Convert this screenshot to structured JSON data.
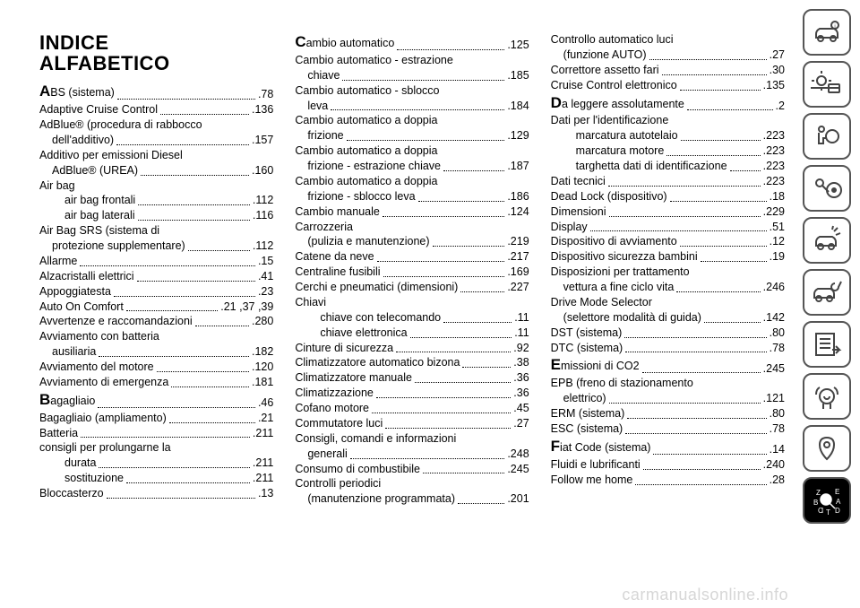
{
  "title_line1": "INDICE",
  "title_line2": "ALFABETICO",
  "watermark": "carmanualsonline.info",
  "columns": [
    [
      {
        "t": "entry",
        "big": "A",
        "label": "BS (sistema)",
        "page": ".78"
      },
      {
        "t": "entry",
        "label": "Adaptive Cruise Control",
        "page": ".136"
      },
      {
        "t": "labelonly",
        "label": "AdBlue® (procedura di rabbocco"
      },
      {
        "t": "entry",
        "indent": 1,
        "label": "dell'additivo)",
        "page": ".157"
      },
      {
        "t": "labelonly",
        "label": "Additivo per emissioni Diesel"
      },
      {
        "t": "entry",
        "indent": 1,
        "label": "AdBlue® (UREA)",
        "page": ".160"
      },
      {
        "t": "labelonly",
        "label": "Air bag"
      },
      {
        "t": "entry",
        "indent": 2,
        "label": "air bag frontali",
        "page": ".112"
      },
      {
        "t": "entry",
        "indent": 2,
        "label": "air bag laterali",
        "page": ".116"
      },
      {
        "t": "labelonly",
        "label": "Air Bag SRS (sistema di"
      },
      {
        "t": "entry",
        "indent": 1,
        "label": "protezione supplementare)",
        "page": ".112"
      },
      {
        "t": "entry",
        "label": "Allarme",
        "page": ".15"
      },
      {
        "t": "entry",
        "label": "Alzacristalli elettrici",
        "page": ".41"
      },
      {
        "t": "entry",
        "label": "Appoggiatesta",
        "page": ".23"
      },
      {
        "t": "entry",
        "label": "Auto On Comfort",
        "page": ".21 ,37 ,39"
      },
      {
        "t": "entry",
        "label": "Avvertenze e raccomandazioni",
        "page": ".280"
      },
      {
        "t": "labelonly",
        "label": "Avviamento con batteria"
      },
      {
        "t": "entry",
        "indent": 1,
        "label": "ausiliaria",
        "page": ".182"
      },
      {
        "t": "entry",
        "label": "Avviamento del motore",
        "page": ".120"
      },
      {
        "t": "entry",
        "label": "Avviamento di emergenza",
        "page": ".181"
      },
      {
        "t": "entry",
        "big": "B",
        "label": "agagliaio",
        "page": ".46"
      },
      {
        "t": "entry",
        "label": "Bagagliaio (ampliamento)",
        "page": ".21"
      },
      {
        "t": "entry",
        "label": "Batteria",
        "page": ".211"
      },
      {
        "t": "labelonly",
        "indent": 2,
        "label": "consigli per prolungarne la"
      },
      {
        "t": "entry",
        "indent": 2,
        "label": "durata",
        "page": ".211"
      },
      {
        "t": "entry",
        "indent": 2,
        "label": "sostituzione",
        "page": ".211"
      },
      {
        "t": "entry",
        "label": "Bloccasterzo",
        "page": ".13"
      }
    ],
    [
      {
        "t": "entry",
        "big": "C",
        "label": "ambio automatico",
        "page": ".125"
      },
      {
        "t": "labelonly",
        "label": "Cambio automatico - estrazione"
      },
      {
        "t": "entry",
        "indent": 1,
        "label": "chiave",
        "page": ".185"
      },
      {
        "t": "labelonly",
        "label": "Cambio automatico - sblocco"
      },
      {
        "t": "entry",
        "indent": 1,
        "label": "leva",
        "page": ".184"
      },
      {
        "t": "labelonly",
        "label": "Cambio automatico a doppia"
      },
      {
        "t": "entry",
        "indent": 1,
        "label": "frizione",
        "page": ".129"
      },
      {
        "t": "labelonly",
        "label": "Cambio automatico a doppia"
      },
      {
        "t": "entry",
        "indent": 1,
        "label": "frizione - estrazione chiave",
        "page": ".187"
      },
      {
        "t": "labelonly",
        "label": "Cambio automatico a doppia"
      },
      {
        "t": "entry",
        "indent": 1,
        "label": "frizione - sblocco leva",
        "page": ".186"
      },
      {
        "t": "entry",
        "label": "Cambio manuale",
        "page": ".124"
      },
      {
        "t": "labelonly",
        "label": "Carrozzeria"
      },
      {
        "t": "entry",
        "indent": 1,
        "label": "(pulizia e manutenzione)",
        "page": ".219"
      },
      {
        "t": "entry",
        "label": "Catene da neve",
        "page": ".217"
      },
      {
        "t": "entry",
        "label": "Centraline fusibili",
        "page": ".169"
      },
      {
        "t": "entry",
        "label": "Cerchi e pneumatici (dimensioni)",
        "page": ".227"
      },
      {
        "t": "labelonly",
        "label": "Chiavi"
      },
      {
        "t": "entry",
        "indent": 2,
        "label": "chiave con telecomando",
        "page": ".11"
      },
      {
        "t": "entry",
        "indent": 2,
        "label": "chiave elettronica",
        "page": ".11"
      },
      {
        "t": "entry",
        "label": "Cinture di sicurezza",
        "page": ".92"
      },
      {
        "t": "entry",
        "label": "Climatizzatore automatico bizona",
        "page": ".38"
      },
      {
        "t": "entry",
        "label": "Climatizzatore manuale",
        "page": ".36"
      },
      {
        "t": "entry",
        "label": "Climatizzazione",
        "page": ".36"
      },
      {
        "t": "entry",
        "label": "Cofano motore",
        "page": ".45"
      },
      {
        "t": "entry",
        "label": "Commutatore luci",
        "page": ".27"
      },
      {
        "t": "labelonly",
        "label": "Consigli, comandi e informazioni"
      },
      {
        "t": "entry",
        "indent": 1,
        "label": "generali",
        "page": ".248"
      },
      {
        "t": "entry",
        "label": "Consumo di combustibile",
        "page": ".245"
      },
      {
        "t": "labelonly",
        "label": "Controlli periodici"
      },
      {
        "t": "entry",
        "indent": 1,
        "label": "(manutenzione programmata)",
        "page": ".201"
      }
    ],
    [
      {
        "t": "labelonly",
        "label": "Controllo automatico luci"
      },
      {
        "t": "entry",
        "indent": 1,
        "label": "(funzione AUTO)",
        "page": ".27"
      },
      {
        "t": "entry",
        "label": "Correttore assetto fari",
        "page": ".30"
      },
      {
        "t": "entry",
        "label": "Cruise Control elettronico",
        "page": ".135"
      },
      {
        "t": "entry",
        "big": "D",
        "label": "a leggere assolutamente",
        "page": ".2"
      },
      {
        "t": "labelonly",
        "label": "Dati per l'identificazione"
      },
      {
        "t": "entry",
        "indent": 2,
        "label": "marcatura autotelaio",
        "page": ".223"
      },
      {
        "t": "entry",
        "indent": 2,
        "label": "marcatura motore",
        "page": ".223"
      },
      {
        "t": "entry",
        "indent": 2,
        "label": "targhetta dati di identificazione",
        "page": ".223"
      },
      {
        "t": "entry",
        "label": "Dati tecnici",
        "page": ".223"
      },
      {
        "t": "entry",
        "label": "Dead Lock (dispositivo)",
        "page": ".18"
      },
      {
        "t": "entry",
        "label": "Dimensioni",
        "page": ".229"
      },
      {
        "t": "entry",
        "label": "Display",
        "page": ".51"
      },
      {
        "t": "entry",
        "label": "Dispositivo di avviamento",
        "page": ".12"
      },
      {
        "t": "entry",
        "label": "Dispositivo sicurezza bambini",
        "page": ".19"
      },
      {
        "t": "labelonly",
        "label": "Disposizioni per trattamento"
      },
      {
        "t": "entry",
        "indent": 1,
        "label": "vettura a fine ciclo vita",
        "page": ".246"
      },
      {
        "t": "labelonly",
        "label": "Drive Mode Selector"
      },
      {
        "t": "entry",
        "indent": 1,
        "label": "(selettore modalità di guida)",
        "page": ".142"
      },
      {
        "t": "entry",
        "label": "DST (sistema)",
        "page": ".80"
      },
      {
        "t": "entry",
        "label": "DTC (sistema)",
        "page": ".78"
      },
      {
        "t": "entry",
        "big": "E",
        "label": "missioni di CO2",
        "page": ".245"
      },
      {
        "t": "labelonly",
        "label": "EPB (freno di stazionamento"
      },
      {
        "t": "entry",
        "indent": 1,
        "label": "elettrico)",
        "page": ".121"
      },
      {
        "t": "entry",
        "label": "ERM (sistema)",
        "page": ".80"
      },
      {
        "t": "entry",
        "label": "ESC (sistema)",
        "page": ".78"
      },
      {
        "t": "entry",
        "big": "F",
        "label": "iat Code (sistema)",
        "page": ".14"
      },
      {
        "t": "entry",
        "label": "Fluidi e lubrificanti",
        "page": ".240"
      },
      {
        "t": "entry",
        "label": "Follow me home",
        "page": ".28"
      }
    ]
  ],
  "rail_icons": [
    {
      "name": "car-info-icon",
      "active": false
    },
    {
      "name": "climate-icon",
      "active": false
    },
    {
      "name": "airbag-icon",
      "active": false
    },
    {
      "name": "key-steering-icon",
      "active": false
    },
    {
      "name": "car-crash-icon",
      "active": false
    },
    {
      "name": "car-service-icon",
      "active": false
    },
    {
      "name": "specs-icon",
      "active": false
    },
    {
      "name": "media-icon",
      "active": false
    },
    {
      "name": "gps-icon",
      "active": false
    },
    {
      "name": "index-icon",
      "active": true
    }
  ]
}
